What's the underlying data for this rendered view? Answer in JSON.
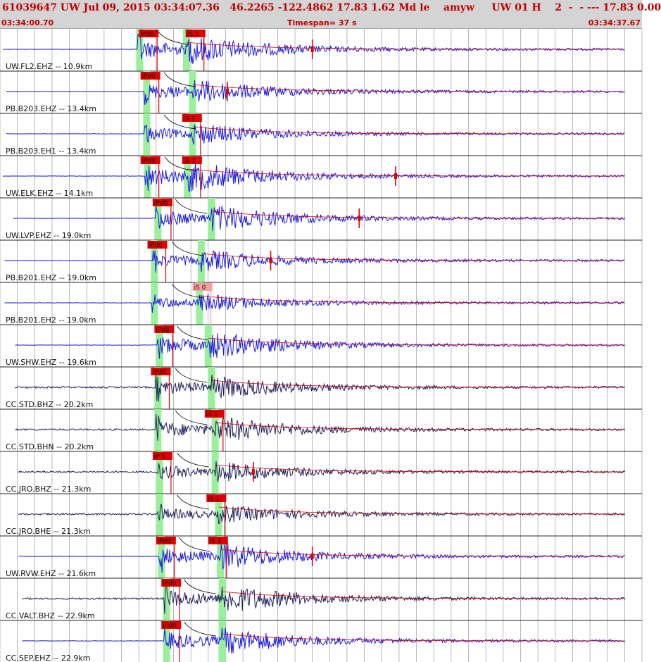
{
  "header": {
    "title": "61039647 UW Jul 09, 2015 03:34:07.36   46.2265 -122.4862 17.83 1.62 Md le    amyw     UW 01 H    2  -  - --- 17.83 0.00",
    "start_time": "03:34:00.70",
    "timespan": "Timespan=  37 s",
    "end_time": "03:34:37.67"
  },
  "colors": {
    "trace_blue": "#1a1ae6",
    "trace_navy": "#20205a",
    "pick_red": "#e00000",
    "pick_pink": "#f4a0a0",
    "window_green": "#9af09a",
    "grid": "#8a8a8a"
  },
  "channels": [
    {
      "label": "UW.FL2.EHZ -- 10.9km",
      "color": "blue",
      "picks": [
        {
          "text": "iPd0",
          "t": 8.0,
          "style": "red"
        },
        {
          "text": "iS 1",
          "t": 10.7,
          "style": "red"
        }
      ],
      "p": 8.05,
      "s": 10.75,
      "spike": 18.0,
      "amp": 1.0,
      "start": 0.0
    },
    {
      "label": "PB.B203.EHZ -- 13.4km",
      "color": "blue",
      "picks": [
        {
          "text": "iPd0",
          "t": 8.1,
          "style": "red"
        }
      ],
      "p": 8.45,
      "s": 11.1,
      "spike": 13.1,
      "amp": 0.8,
      "start": 0.2
    },
    {
      "label": "PB.B203.EH1 -- 13.4km",
      "color": "blue",
      "picks": [
        {
          "text": "iS 1",
          "t": 10.5,
          "style": "red"
        }
      ],
      "p": 8.45,
      "s": 11.1,
      "spike": 0,
      "amp": 0.7,
      "start": 0.2
    },
    {
      "label": "UW.ELK.EHZ -- 14.1km",
      "color": "blue",
      "picks": [
        {
          "text": "iPd0",
          "t": 8.1,
          "style": "red"
        },
        {
          "text": "iS 1",
          "t": 10.5,
          "style": "red"
        }
      ],
      "p": 8.5,
      "s": 10.8,
      "spike": 22.8,
      "amp": 1.0,
      "start": 0.0
    },
    {
      "label": "UW.LVP.EHZ -- 19.0km",
      "color": "blue",
      "picks": [
        {
          "text": "iPd0",
          "t": 8.8,
          "style": "red"
        }
      ],
      "p": 9.1,
      "s": 12.2,
      "spike": 20.7,
      "amp": 0.9,
      "start": 0.6
    },
    {
      "label": "PB.B201.EHZ -- 19.0km",
      "color": "blue",
      "picks": [
        {
          "text": "iPd0",
          "t": 8.5,
          "style": "red"
        }
      ],
      "p": 8.9,
      "s": 11.6,
      "spike": 15.6,
      "amp": 0.7,
      "start": 0.1
    },
    {
      "label": "PB.B201.EH2 -- 19.0km",
      "color": "blue",
      "picks": [
        {
          "text": "iS 0",
          "t": 11.1,
          "style": "pink"
        }
      ],
      "p": 8.9,
      "s": 11.5,
      "spike": 0,
      "amp": 0.55,
      "start": 0.1
    },
    {
      "label": "UW.SHW.EHZ -- 19.6km",
      "color": "blue",
      "picks": [
        {
          "text": "iPd0",
          "t": 8.9,
          "style": "red"
        }
      ],
      "p": 9.2,
      "s": 12.0,
      "spike": 0,
      "amp": 0.9,
      "start": 0.7
    },
    {
      "label": "CC.STD.BHZ -- 20.2km",
      "color": "navy",
      "picks": [
        {
          "text": "iPd0",
          "t": 8.7,
          "style": "red"
        }
      ],
      "p": 9.1,
      "s": 12.2,
      "spike": 0,
      "amp": 0.8,
      "start": 0.7
    },
    {
      "label": "CC.STD.BHN -- 20.2km",
      "color": "navy",
      "picks": [
        {
          "text": "iS 1",
          "t": 11.8,
          "style": "red"
        }
      ],
      "p": 9.1,
      "s": 12.4,
      "spike": 0,
      "amp": 0.9,
      "start": 0.7
    },
    {
      "label": "CC.JRO.BHZ -- 21.3km",
      "color": "navy",
      "picks": [
        {
          "text": "iP 1",
          "t": 8.8,
          "style": "red"
        }
      ],
      "p": 9.2,
      "s": 12.4,
      "spike": 14.6,
      "amp": 0.7,
      "start": 0.9
    },
    {
      "label": "CC.JRO.BHE -- 21.3km",
      "color": "navy",
      "picks": [
        {
          "text": "iS 1",
          "t": 11.9,
          "style": "red"
        }
      ],
      "p": 9.2,
      "s": 12.6,
      "spike": 0,
      "amp": 0.6,
      "start": 0.9
    },
    {
      "label": "UW.RVW.EHZ -- 21.6km",
      "color": "blue",
      "picks": [
        {
          "text": "iPd0",
          "t": 9.0,
          "style": "red"
        },
        {
          "text": "iS 1",
          "t": 12.0,
          "style": "red"
        }
      ],
      "p": 9.3,
      "s": 12.7,
      "spike": 18.0,
      "amp": 0.9,
      "start": 0.9
    },
    {
      "label": "CC.VALT.BHZ -- 22.9km",
      "color": "navy",
      "picks": [
        {
          "text": "iPd0",
          "t": 9.3,
          "style": "red"
        }
      ],
      "p": 9.6,
      "s": 12.8,
      "spike": 0,
      "amp": 1.0,
      "start": 1.1
    },
    {
      "label": "CC.SEP.EHZ -- 22.9km",
      "color": "blue",
      "picks": [
        {
          "text": "iPd0",
          "t": 9.3,
          "style": "red"
        }
      ],
      "p": 9.6,
      "s": 12.8,
      "spike": 0,
      "amp": 0.9,
      "start": 1.1
    }
  ]
}
